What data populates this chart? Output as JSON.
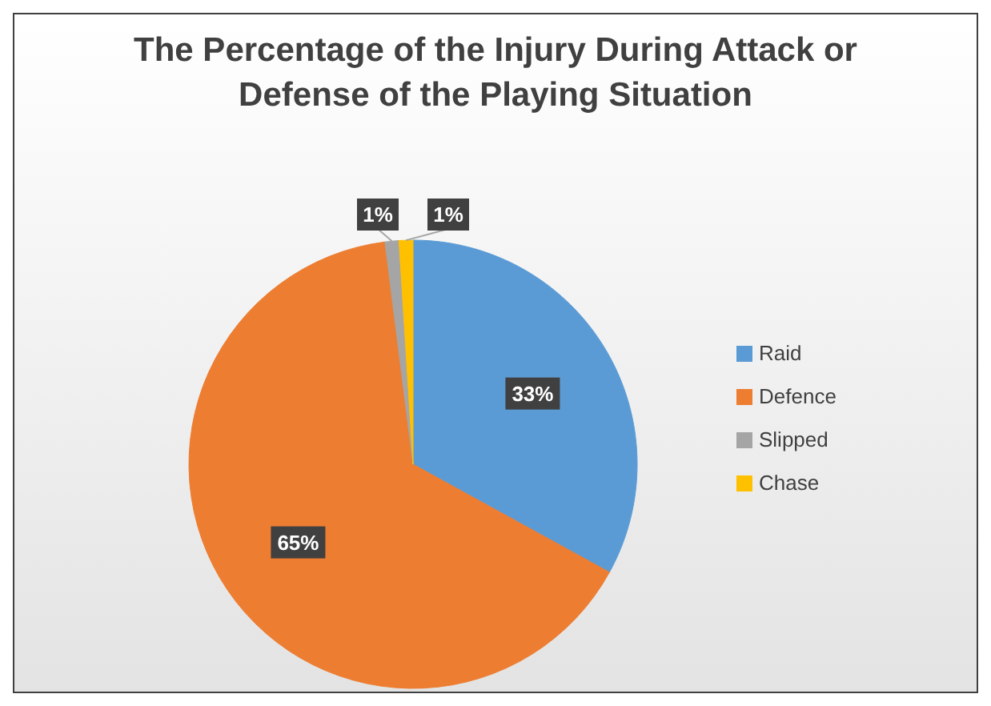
{
  "chart_data": {
    "type": "pie",
    "title": "The Percentage of the Injury During Attack or Defense of the Playing Situation",
    "categories": [
      "Raid",
      "Defence",
      "Slipped",
      "Chase"
    ],
    "values": [
      33,
      65,
      1,
      1
    ],
    "colors": [
      "#5b9bd5",
      "#ed7d31",
      "#a5a5a5",
      "#ffc000"
    ],
    "value_labels": [
      "33%",
      "65%",
      "1%",
      "1%"
    ],
    "legend": "right"
  }
}
